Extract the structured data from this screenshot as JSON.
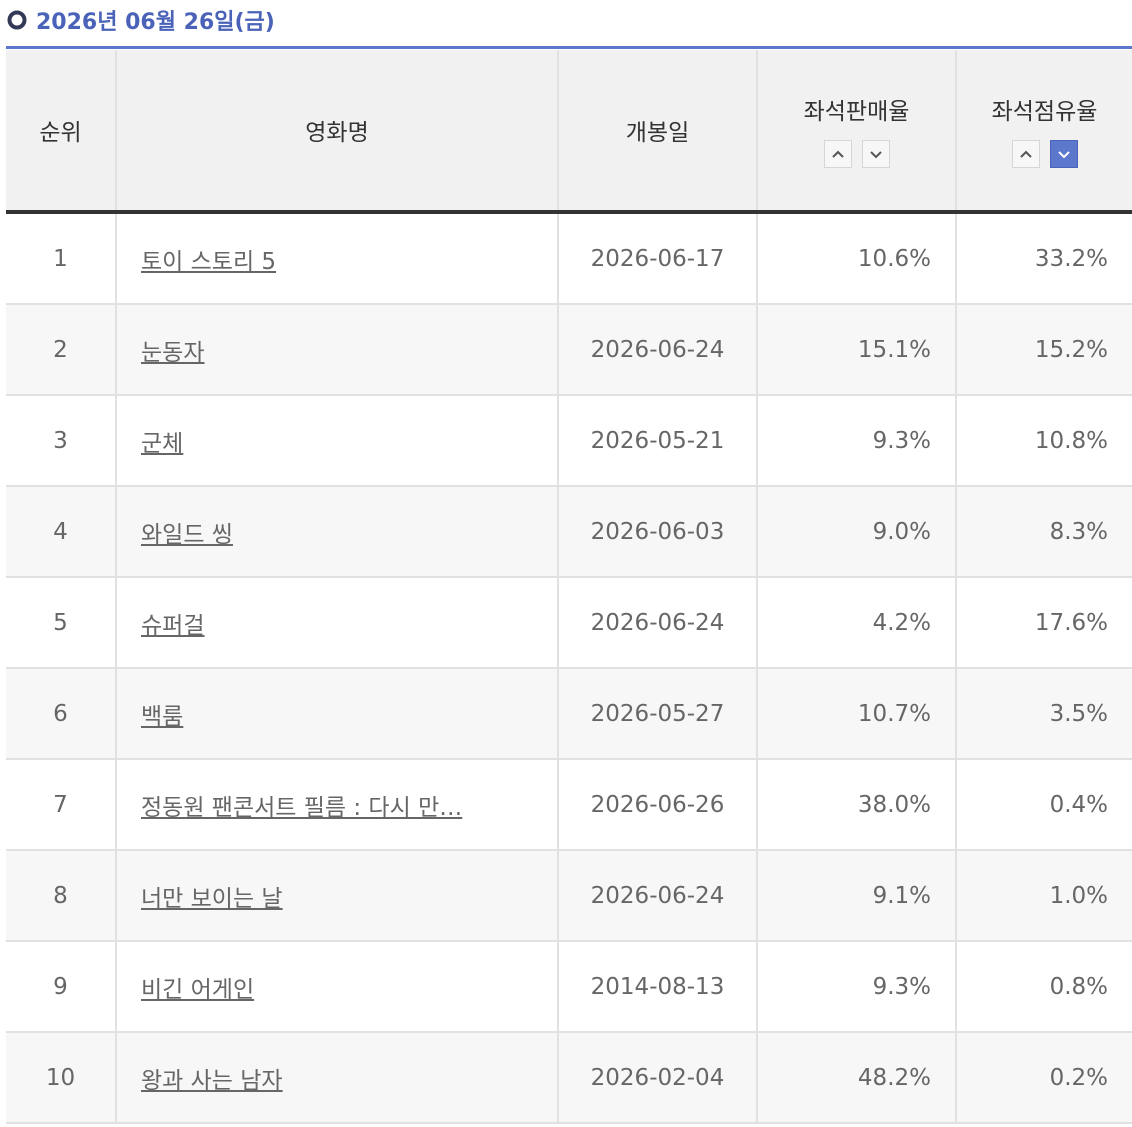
{
  "header": {
    "date": "2026년 06월 26일(금)"
  },
  "table": {
    "columns": [
      "순위",
      "영화명",
      "개봉일",
      "좌석판매율",
      "좌석점유율"
    ],
    "rows": [
      [
        "1",
        "토이 스토리 5",
        "2026-06-17",
        "10.6%",
        "33.2%"
      ],
      [
        "2",
        "눈동자",
        "2026-06-24",
        "15.1%",
        "15.2%"
      ],
      [
        "3",
        "군체",
        "2026-05-21",
        "9.3%",
        "10.8%"
      ],
      [
        "4",
        "와일드 씽",
        "2026-06-03",
        "9.0%",
        "8.3%"
      ],
      [
        "5",
        "슈퍼걸",
        "2026-06-24",
        "4.2%",
        "17.6%"
      ],
      [
        "6",
        "백룸",
        "2026-05-27",
        "10.7%",
        "3.5%"
      ],
      [
        "7",
        "정동원 팬콘서트 필름 : 다시 만…",
        "2026-06-26",
        "38.0%",
        "0.4%"
      ],
      [
        "8",
        "너만 보이는 날",
        "2026-06-24",
        "9.1%",
        "1.0%"
      ],
      [
        "9",
        "비긴 어게인",
        "2014-08-13",
        "9.3%",
        "0.8%"
      ],
      [
        "10",
        "왕과 사는 남자",
        "2026-02-04",
        "48.2%",
        "0.2%"
      ]
    ]
  }
}
